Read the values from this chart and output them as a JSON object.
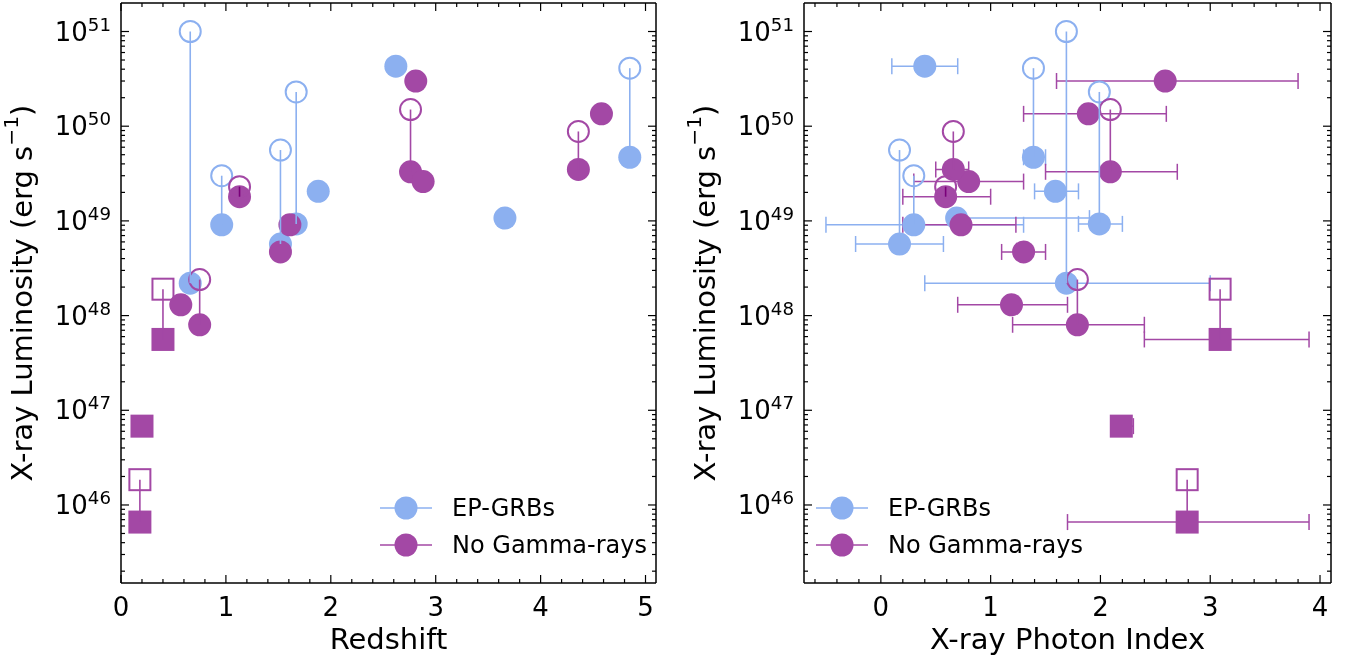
{
  "chart_data": [
    {
      "type": "scatter",
      "xlabel": "Redshift",
      "ylabel": "X-ray Luminosity (erg s$^{−1}$)",
      "log": "y",
      "legend": "bottom right",
      "xlim": [
        0,
        5.1
      ],
      "xticks": [
        0,
        {
          "value": 0.2,
          "label": null
        },
        {
          "value": 0.4,
          "label": null
        },
        {
          "value": 0.6,
          "label": null
        },
        {
          "value": 0.8,
          "label": null
        },
        1,
        {
          "value": 1.2,
          "label": null
        },
        {
          "value": 1.4,
          "label": null
        },
        {
          "value": 1.6,
          "label": null
        },
        {
          "value": 1.8,
          "label": null
        },
        2,
        {
          "value": 2.2,
          "label": null
        },
        {
          "value": 2.4,
          "label": null
        },
        {
          "value": 2.6,
          "label": null
        },
        {
          "value": 2.8,
          "label": null
        },
        3,
        {
          "value": 3.2,
          "label": null
        },
        {
          "value": 3.4,
          "label": null
        },
        {
          "value": 3.6,
          "label": null
        },
        {
          "value": 3.8,
          "label": null
        },
        4,
        {
          "value": 4.2,
          "label": null
        },
        {
          "value": 4.4,
          "label": null
        },
        {
          "value": 4.6,
          "label": null
        },
        {
          "value": 4.8,
          "label": null
        },
        5
      ],
      "ylim": [
        1.5e+45,
        2e+51
      ],
      "yticks": [
        {
          "value": 2e+45,
          "label": null
        },
        {
          "value": 3e+45,
          "label": null
        },
        {
          "value": 4e+45,
          "label": null
        },
        {
          "value": 5e+45,
          "label": null
        },
        {
          "value": 6e+45,
          "label": null
        },
        {
          "value": 7e+45,
          "label": null
        },
        {
          "value": 8e+45,
          "label": null
        },
        {
          "value": 9e+45,
          "label": null
        },
        {
          "value": 1e+46,
          "label": "10$^{46}$"
        },
        {
          "value": 2e+46,
          "label": null
        },
        {
          "value": 3e+46,
          "label": null
        },
        {
          "value": 4e+46,
          "label": null
        },
        {
          "value": 5e+46,
          "label": null
        },
        {
          "value": 6e+46,
          "label": null
        },
        {
          "value": 7e+46,
          "label": null
        },
        {
          "value": 8e+46,
          "label": null
        },
        {
          "value": 9e+46,
          "label": null
        },
        {
          "value": 1e+47,
          "label": "10$^{47}$"
        },
        {
          "value": 2e+47,
          "label": null
        },
        {
          "value": 3e+47,
          "label": null
        },
        {
          "value": 4e+47,
          "label": null
        },
        {
          "value": 5e+47,
          "label": null
        },
        {
          "value": 6e+47,
          "label": null
        },
        {
          "value": 7e+47,
          "label": null
        },
        {
          "value": 8e+47,
          "label": null
        },
        {
          "value": 9e+47,
          "label": null
        },
        {
          "value": 1e+48,
          "label": "10$^{48}$"
        },
        {
          "value": 2e+48,
          "label": null
        },
        {
          "value": 3e+48,
          "label": null
        },
        {
          "value": 4e+48,
          "label": null
        },
        {
          "value": 5e+48,
          "label": null
        },
        {
          "value": 6e+48,
          "label": null
        },
        {
          "value": 7e+48,
          "label": null
        },
        {
          "value": 8e+48,
          "label": null
        },
        {
          "value": 9e+48,
          "label": null
        },
        {
          "value": 1e+49,
          "label": "10$^{49}$"
        },
        {
          "value": 2e+49,
          "label": null
        },
        {
          "value": 3e+49,
          "label": null
        },
        {
          "value": 4e+49,
          "label": null
        },
        {
          "value": 5e+49,
          "label": null
        },
        {
          "value": 6e+49,
          "label": null
        },
        {
          "value": 7e+49,
          "label": null
        },
        {
          "value": 8e+49,
          "label": null
        },
        {
          "value": 9e+49,
          "label": null
        },
        {
          "value": 1e+50,
          "label": "10$^{50}$"
        },
        {
          "value": 2e+50,
          "label": null
        },
        {
          "value": 3e+50,
          "label": null
        },
        {
          "value": 4e+50,
          "label": null
        },
        {
          "value": 5e+50,
          "label": null
        },
        {
          "value": 6e+50,
          "label": null
        },
        {
          "value": 7e+50,
          "label": null
        },
        {
          "value": 8e+50,
          "label": null
        },
        {
          "value": 9e+50,
          "label": null
        },
        {
          "value": 1e+51,
          "label": "10$^{51}$"
        }
      ],
      "series": [
        {
          "type": "line",
          "color": "#8cb0f0",
          "marker": "none",
          "x": [
            0.66,
            0.66
          ],
          "values": [
            2.2e+48,
            1e+51
          ]
        },
        {
          "type": "line",
          "color": "#8cb0f0",
          "marker": "none",
          "x": [
            0.96,
            0.96
          ],
          "values": [
            9.1e+48,
            3e+49
          ]
        },
        {
          "type": "line",
          "color": "#8cb0f0",
          "marker": "none",
          "x": [
            1.52,
            1.52
          ],
          "values": [
            5.7e+48,
            5.6e+49
          ]
        },
        {
          "type": "line",
          "color": "#8cb0f0",
          "marker": "none",
          "x": [
            1.67,
            1.67
          ],
          "values": [
            9.3e+48,
            2.3e+50
          ]
        },
        {
          "type": "line",
          "color": "#8cb0f0",
          "marker": "none",
          "x": [
            4.85,
            4.85
          ],
          "values": [
            4.7e+49,
            4.1e+50
          ]
        },
        {
          "type": "line",
          "color": "#a348a5",
          "marker": "none",
          "x": [
            0.75,
            0.75
          ],
          "values": [
            8e+47,
            2.4e+48
          ]
        },
        {
          "type": "line",
          "color": "#7a007a",
          "marker": "none",
          "x": [
            1.13,
            1.13
          ],
          "values": [
            1.8e+49,
            2.3e+49
          ]
        },
        {
          "type": "line",
          "color": "#a348a5",
          "marker": "none",
          "x": [
            2.76,
            2.76
          ],
          "values": [
            3.3e+49,
            1.5e+50
          ]
        },
        {
          "type": "line",
          "color": "#a348a5",
          "marker": "none",
          "x": [
            4.36,
            4.36
          ],
          "values": [
            3.5e+49,
            8.8e+49
          ]
        },
        {
          "type": "line",
          "color": "#a348a5",
          "marker": "none",
          "x": [
            0.4,
            0.4
          ],
          "values": [
            5.6e+47,
            1.9e+48
          ]
        },
        {
          "type": "line",
          "color": "#a348a5",
          "marker": "none",
          "x": [
            0.18,
            0.18
          ],
          "values": [
            6.6e+45,
            1.85e+46
          ]
        },
        {
          "name": "EP-GRBs",
          "color": "#8cb0f0",
          "marker": "circle",
          "x": [
            0.66,
            0.96,
            1.52,
            1.67,
            1.88,
            2.62,
            3.66,
            4.85
          ],
          "values": [
            2.2e+48,
            9.1e+48,
            5.7e+48,
            9.3e+48,
            2.05e+49,
            4.3e+50,
            1.07e+49,
            4.7e+49
          ]
        },
        {
          "name": "No Gamma-rays",
          "color": "#a348a5",
          "marker": "circle",
          "x": [
            0.57,
            0.75,
            1.13,
            1.52,
            1.61,
            2.76,
            2.81,
            2.88,
            4.36,
            4.58
          ],
          "values": [
            1.3e+48,
            8e+47,
            1.8e+49,
            4.7e+48,
            9.1e+48,
            3.3e+49,
            3e+50,
            2.6e+49,
            3.5e+49,
            1.35e+50
          ]
        },
        {
          "color": "#a348a5",
          "marker": "square",
          "x": [
            0.4,
            0.2,
            0.18
          ],
          "values": [
            5.6e+47,
            6.8e+46,
            6.6e+45
          ]
        },
        {
          "color": "#8cb0f0",
          "marker": "circle-open",
          "x": [
            0.66,
            0.96,
            1.52,
            1.67,
            4.85
          ],
          "values": [
            1e+51,
            3e+49,
            5.6e+49,
            2.3e+50,
            4.1e+50
          ]
        },
        {
          "color": "#a348a5",
          "marker": "circle-open",
          "x": [
            0.75,
            1.13,
            2.76,
            4.36
          ],
          "values": [
            2.4e+48,
            2.3e+49,
            1.5e+50,
            8.8e+49
          ]
        },
        {
          "color": "#a348a5",
          "marker": "square-open",
          "x": [
            0.4,
            0.18
          ],
          "values": [
            1.9e+48,
            1.85e+46
          ]
        }
      ]
    },
    {
      "type": "scatter",
      "xlabel": "X-ray Photon Index",
      "ylabel": "X-ray Luminosity (erg s$^{−1}$)",
      "log": "y",
      "legend": "bottom left",
      "xlim": [
        -0.7,
        4.1
      ],
      "xticks": [
        {
          "value": -0.6,
          "label": null
        },
        {
          "value": -0.4,
          "label": null
        },
        {
          "value": -0.2,
          "label": null
        },
        0,
        {
          "value": 0.2,
          "label": null
        },
        {
          "value": 0.4,
          "label": null
        },
        {
          "value": 0.6,
          "label": null
        },
        {
          "value": 0.8,
          "label": null
        },
        1,
        {
          "value": 1.2,
          "label": null
        },
        {
          "value": 1.4,
          "label": null
        },
        {
          "value": 1.6,
          "label": null
        },
        {
          "value": 1.8,
          "label": null
        },
        2,
        {
          "value": 2.2,
          "label": null
        },
        {
          "value": 2.4,
          "label": null
        },
        {
          "value": 2.6,
          "label": null
        },
        {
          "value": 2.8,
          "label": null
        },
        3,
        {
          "value": 3.2,
          "label": null
        },
        {
          "value": 3.4,
          "label": null
        },
        {
          "value": 3.6,
          "label": null
        },
        {
          "value": 3.8,
          "label": null
        },
        4
      ],
      "ylim": [
        1.5e+45,
        2e+51
      ],
      "yticks": [
        {
          "value": 2e+45,
          "label": null
        },
        {
          "value": 3e+45,
          "label": null
        },
        {
          "value": 4e+45,
          "label": null
        },
        {
          "value": 5e+45,
          "label": null
        },
        {
          "value": 6e+45,
          "label": null
        },
        {
          "value": 7e+45,
          "label": null
        },
        {
          "value": 8e+45,
          "label": null
        },
        {
          "value": 9e+45,
          "label": null
        },
        {
          "value": 1e+46,
          "label": "10$^{46}$"
        },
        {
          "value": 2e+46,
          "label": null
        },
        {
          "value": 3e+46,
          "label": null
        },
        {
          "value": 4e+46,
          "label": null
        },
        {
          "value": 5e+46,
          "label": null
        },
        {
          "value": 6e+46,
          "label": null
        },
        {
          "value": 7e+46,
          "label": null
        },
        {
          "value": 8e+46,
          "label": null
        },
        {
          "value": 9e+46,
          "label": null
        },
        {
          "value": 1e+47,
          "label": "10$^{47}$"
        },
        {
          "value": 2e+47,
          "label": null
        },
        {
          "value": 3e+47,
          "label": null
        },
        {
          "value": 4e+47,
          "label": null
        },
        {
          "value": 5e+47,
          "label": null
        },
        {
          "value": 6e+47,
          "label": null
        },
        {
          "value": 7e+47,
          "label": null
        },
        {
          "value": 8e+47,
          "label": null
        },
        {
          "value": 9e+47,
          "label": null
        },
        {
          "value": 1e+48,
          "label": "10$^{48}$"
        },
        {
          "value": 2e+48,
          "label": null
        },
        {
          "value": 3e+48,
          "label": null
        },
        {
          "value": 4e+48,
          "label": null
        },
        {
          "value": 5e+48,
          "label": null
        },
        {
          "value": 6e+48,
          "label": null
        },
        {
          "value": 7e+48,
          "label": null
        },
        {
          "value": 8e+48,
          "label": null
        },
        {
          "value": 9e+48,
          "label": null
        },
        {
          "value": 1e+49,
          "label": "10$^{49}$"
        },
        {
          "value": 2e+49,
          "label": null
        },
        {
          "value": 3e+49,
          "label": null
        },
        {
          "value": 4e+49,
          "label": null
        },
        {
          "value": 5e+49,
          "label": null
        },
        {
          "value": 6e+49,
          "label": null
        },
        {
          "value": 7e+49,
          "label": null
        },
        {
          "value": 8e+49,
          "label": null
        },
        {
          "value": 9e+49,
          "label": null
        },
        {
          "value": 1e+50,
          "label": "10$^{50}$"
        },
        {
          "value": 2e+50,
          "label": null
        },
        {
          "value": 3e+50,
          "label": null
        },
        {
          "value": 4e+50,
          "label": null
        },
        {
          "value": 5e+50,
          "label": null
        },
        {
          "value": 6e+50,
          "label": null
        },
        {
          "value": 7e+50,
          "label": null
        },
        {
          "value": 8e+50,
          "label": null
        },
        {
          "value": 9e+50,
          "label": null
        },
        {
          "value": 1e+51,
          "label": "10$^{51}$"
        }
      ],
      "series": [
        {
          "type": "line",
          "color": "#8cb0f0",
          "marker": "none",
          "x": [
            1.69,
            1.69
          ],
          "values": [
            2.2e+48,
            1e+51
          ]
        },
        {
          "type": "line",
          "color": "#8cb0f0",
          "marker": "none",
          "x": [
            0.3,
            0.3
          ],
          "values": [
            9.1e+48,
            3e+49
          ]
        },
        {
          "type": "line",
          "color": "#8cb0f0",
          "marker": "none",
          "x": [
            0.17,
            0.17
          ],
          "values": [
            5.7e+48,
            5.6e+49
          ]
        },
        {
          "type": "line",
          "color": "#8cb0f0",
          "marker": "none",
          "x": [
            1.99,
            1.99
          ],
          "values": [
            9.3e+48,
            2.3e+50
          ]
        },
        {
          "type": "line",
          "color": "#8cb0f0",
          "marker": "none",
          "x": [
            1.39,
            1.39
          ],
          "values": [
            4.7e+49,
            4.1e+50
          ]
        },
        {
          "type": "line",
          "color": "#a348a5",
          "marker": "none",
          "x": [
            1.79,
            1.79
          ],
          "values": [
            8e+47,
            2.4e+48
          ]
        },
        {
          "type": "line",
          "color": "#7a007a",
          "marker": "none",
          "x": [
            0.59,
            0.59
          ],
          "values": [
            1.8e+49,
            2.3e+49
          ]
        },
        {
          "type": "line",
          "color": "#a348a5",
          "marker": "none",
          "x": [
            2.09,
            2.09
          ],
          "values": [
            3.3e+49,
            1.5e+50
          ]
        },
        {
          "type": "line",
          "color": "#a348a5",
          "marker": "none",
          "x": [
            0.66,
            0.66
          ],
          "values": [
            3.5e+49,
            8.8e+49
          ]
        },
        {
          "type": "line",
          "color": "#a348a5",
          "marker": "none",
          "x": [
            3.09,
            3.09
          ],
          "values": [
            5.6e+47,
            1.9e+48
          ]
        },
        {
          "type": "line",
          "color": "#a348a5",
          "marker": "none",
          "x": [
            2.79,
            2.79
          ],
          "values": [
            6.6e+45,
            1.85e+46
          ]
        },
        {
          "name": "EP-GRBs",
          "color": "#8cb0f0",
          "marker": "circle",
          "x": [
            1.69,
            0.3,
            0.17,
            1.99,
            1.59,
            0.4,
            0.69,
            1.39
          ],
          "values": [
            2.2e+48,
            9.1e+48,
            5.7e+48,
            9.3e+48,
            2.05e+49,
            4.3e+50,
            1.07e+49,
            4.7e+49
          ],
          "xerrors": [
            [
              0.4,
              3.0
            ],
            [
              -0.5,
              1.3
            ],
            [
              -0.23,
              0.57
            ],
            [
              1.8,
              2.2
            ],
            [
              1.4,
              1.8
            ],
            [
              0.1,
              0.7
            ],
            [
              0.69,
              1.9
            ],
            [
              1.3,
              1.5
            ]
          ]
        },
        {
          "name": "No Gamma-rays",
          "color": "#a348a5",
          "marker": "circle",
          "x": [
            1.19,
            1.79,
            0.59,
            1.3,
            0.73,
            2.09,
            2.59,
            0.8,
            0.66,
            1.89
          ],
          "values": [
            1.3e+48,
            8e+47,
            1.8e+49,
            4.7e+48,
            9.1e+48,
            3.3e+49,
            3e+50,
            2.6e+49,
            3.5e+49,
            1.35e+50
          ],
          "xerrors": [
            [
              0.7,
              1.7
            ],
            [
              1.2,
              2.4
            ],
            [
              0.2,
              1.0
            ],
            [
              1.1,
              1.5
            ],
            [
              0.2,
              1.23
            ],
            [
              1.5,
              2.7
            ],
            [
              1.6,
              3.8
            ],
            [
              0.3,
              1.3
            ],
            [
              0.5,
              0.8
            ],
            [
              1.3,
              2.6
            ]
          ]
        },
        {
          "color": "#a348a5",
          "marker": "square",
          "x": [
            3.09,
            2.19,
            2.79
          ],
          "values": [
            5.6e+47,
            6.8e+46,
            6.6e+45
          ],
          "xerrors": [
            [
              2.4,
              3.9
            ],
            [
              2.1,
              2.3
            ],
            [
              1.7,
              3.9
            ]
          ]
        },
        {
          "color": "#8cb0f0",
          "marker": "circle-open",
          "x": [
            1.69,
            0.3,
            0.17,
            1.99,
            1.39
          ],
          "values": [
            1e+51,
            3e+49,
            5.6e+49,
            2.3e+50,
            4.1e+50
          ]
        },
        {
          "color": "#a348a5",
          "marker": "circle-open",
          "x": [
            1.79,
            0.59,
            2.09,
            0.66
          ],
          "values": [
            2.4e+48,
            2.3e+49,
            1.5e+50,
            8.8e+49
          ]
        },
        {
          "color": "#a348a5",
          "marker": "square-open",
          "x": [
            3.09,
            2.79
          ],
          "values": [
            1.9e+48,
            1.85e+46
          ]
        }
      ]
    }
  ]
}
